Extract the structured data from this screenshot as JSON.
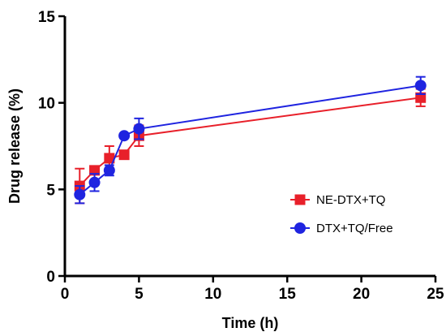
{
  "chart_data": {
    "type": "line",
    "xlabel": "Time (h)",
    "ylabel": "Drug release (%)",
    "xlim": [
      0,
      25
    ],
    "ylim": [
      0,
      15
    ],
    "xticks": [
      0,
      5,
      10,
      15,
      20,
      25
    ],
    "yticks": [
      0,
      5,
      10,
      15
    ],
    "xtick_labels": [
      "0",
      "5",
      "10",
      "15",
      "20",
      "25"
    ],
    "ytick_labels": [
      "0",
      "5",
      "10",
      "15"
    ],
    "grid": false,
    "legend_position": "lower-right",
    "series": [
      {
        "name": "NE-DTX+TQ",
        "color": "#e8202a",
        "marker": "square",
        "x": [
          1,
          2,
          3,
          4,
          5,
          24
        ],
        "y": [
          5.2,
          6.1,
          6.8,
          7.0,
          8.1,
          10.3
        ],
        "err": [
          1.0,
          0.2,
          0.7,
          0.2,
          0.6,
          0.5
        ]
      },
      {
        "name": "DTX+TQ/Free",
        "color": "#1f24e0",
        "marker": "circle",
        "x": [
          1,
          2,
          3,
          4,
          5,
          24
        ],
        "y": [
          4.7,
          5.4,
          6.1,
          8.1,
          8.5,
          11.0
        ],
        "err": [
          0.5,
          0.5,
          0.3,
          0.1,
          0.6,
          0.5
        ]
      }
    ]
  }
}
